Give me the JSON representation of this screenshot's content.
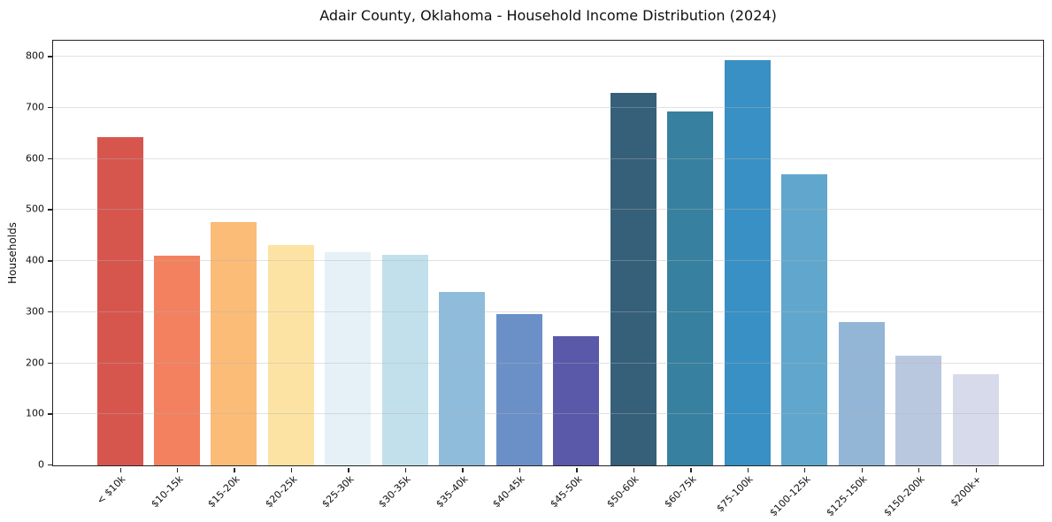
{
  "chart_data": {
    "type": "bar",
    "title": "Adair County, Oklahoma - Household Income Distribution (2024)",
    "xlabel": "",
    "ylabel": "Households",
    "categories": [
      "< $10k",
      "$10-15k",
      "$15-20k",
      "$20-25k",
      "$25-30k",
      "$30-35k",
      "$35-40k",
      "$40-45k",
      "$45-50k",
      "$50-60k",
      "$60-75k",
      "$75-100k",
      "$100-125k",
      "$125-150k",
      "$150-200k",
      "$200k+"
    ],
    "values": [
      643,
      410,
      476,
      431,
      418,
      413,
      339,
      297,
      253,
      730,
      693,
      794,
      570,
      280,
      215,
      178
    ],
    "bar_colors": [
      "#d6564e",
      "#f3815f",
      "#fbbc77",
      "#fde3a3",
      "#e5f1f7",
      "#c2e0eb",
      "#8fbcdb",
      "#6b90c8",
      "#5a58a8",
      "#365f79",
      "#37809f",
      "#3990c4",
      "#61a7cd",
      "#93b6d7",
      "#bac8df",
      "#d7daea"
    ],
    "ylim": [
      0,
      830
    ],
    "yticks": [
      0,
      100,
      200,
      300,
      400,
      500,
      600,
      700,
      800
    ],
    "grid": "horizontal-light",
    "legend": "none",
    "background_color": "#ffffff",
    "axis_color": "#242424"
  }
}
